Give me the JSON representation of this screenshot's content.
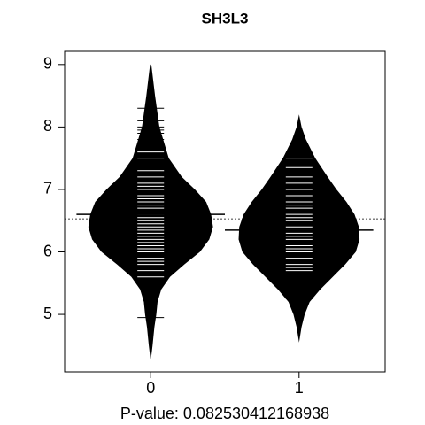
{
  "chart_data": {
    "type": "beanplot",
    "title": "SH3L3",
    "xlabel": "P-value: 0.082530412168938",
    "categories": [
      "0",
      "1"
    ],
    "ylim": [
      4.08,
      9.21
    ],
    "yticks": [
      5,
      6,
      7,
      8,
      9
    ],
    "xlim": [
      -0.58,
      1.58
    ],
    "color": "#000000",
    "beanline_color": "#ffffff",
    "overall_mean": 6.53,
    "beans": [
      {
        "mean": 6.6,
        "density_y": [
          9.0,
          8.5,
          8.0,
          7.5,
          7.2,
          7.0,
          6.8,
          6.6,
          6.4,
          6.2,
          6.0,
          5.8,
          5.6,
          5.4,
          5.2,
          5.0,
          4.8,
          4.5,
          4.25
        ],
        "density": [
          0.01,
          0.07,
          0.14,
          0.29,
          0.5,
          0.71,
          0.89,
          0.97,
          1.0,
          0.94,
          0.79,
          0.54,
          0.31,
          0.17,
          0.11,
          0.09,
          0.06,
          0.03,
          0.0
        ],
        "observations": [
          4.95,
          5.5,
          5.6,
          5.7,
          5.8,
          5.85,
          5.9,
          6.0,
          6.05,
          6.1,
          6.15,
          6.2,
          6.25,
          6.3,
          6.35,
          6.4,
          6.45,
          6.5,
          6.55,
          6.6,
          6.7,
          6.75,
          6.8,
          6.85,
          6.9,
          7.0,
          7.05,
          7.1,
          7.2,
          7.3,
          7.5,
          7.6,
          7.7,
          7.8,
          7.9,
          7.95,
          8.0,
          8.1,
          8.3
        ]
      },
      {
        "mean": 6.35,
        "density_y": [
          8.2,
          8.0,
          7.8,
          7.5,
          7.2,
          7.0,
          6.8,
          6.6,
          6.4,
          6.2,
          6.0,
          5.8,
          5.6,
          5.4,
          5.2,
          5.0,
          4.8,
          4.55
        ],
        "density": [
          0.0,
          0.04,
          0.11,
          0.26,
          0.46,
          0.6,
          0.76,
          0.89,
          0.96,
          0.97,
          0.91,
          0.74,
          0.54,
          0.34,
          0.17,
          0.09,
          0.04,
          0.0
        ],
        "observations": [
          5.25,
          5.7,
          5.75,
          5.8,
          5.9,
          6.0,
          6.05,
          6.1,
          6.2,
          6.25,
          6.3,
          6.35,
          6.4,
          6.5,
          6.55,
          6.6,
          6.7,
          6.75,
          6.8,
          6.9,
          7.0,
          7.1,
          7.2,
          7.35,
          7.5
        ]
      }
    ]
  }
}
